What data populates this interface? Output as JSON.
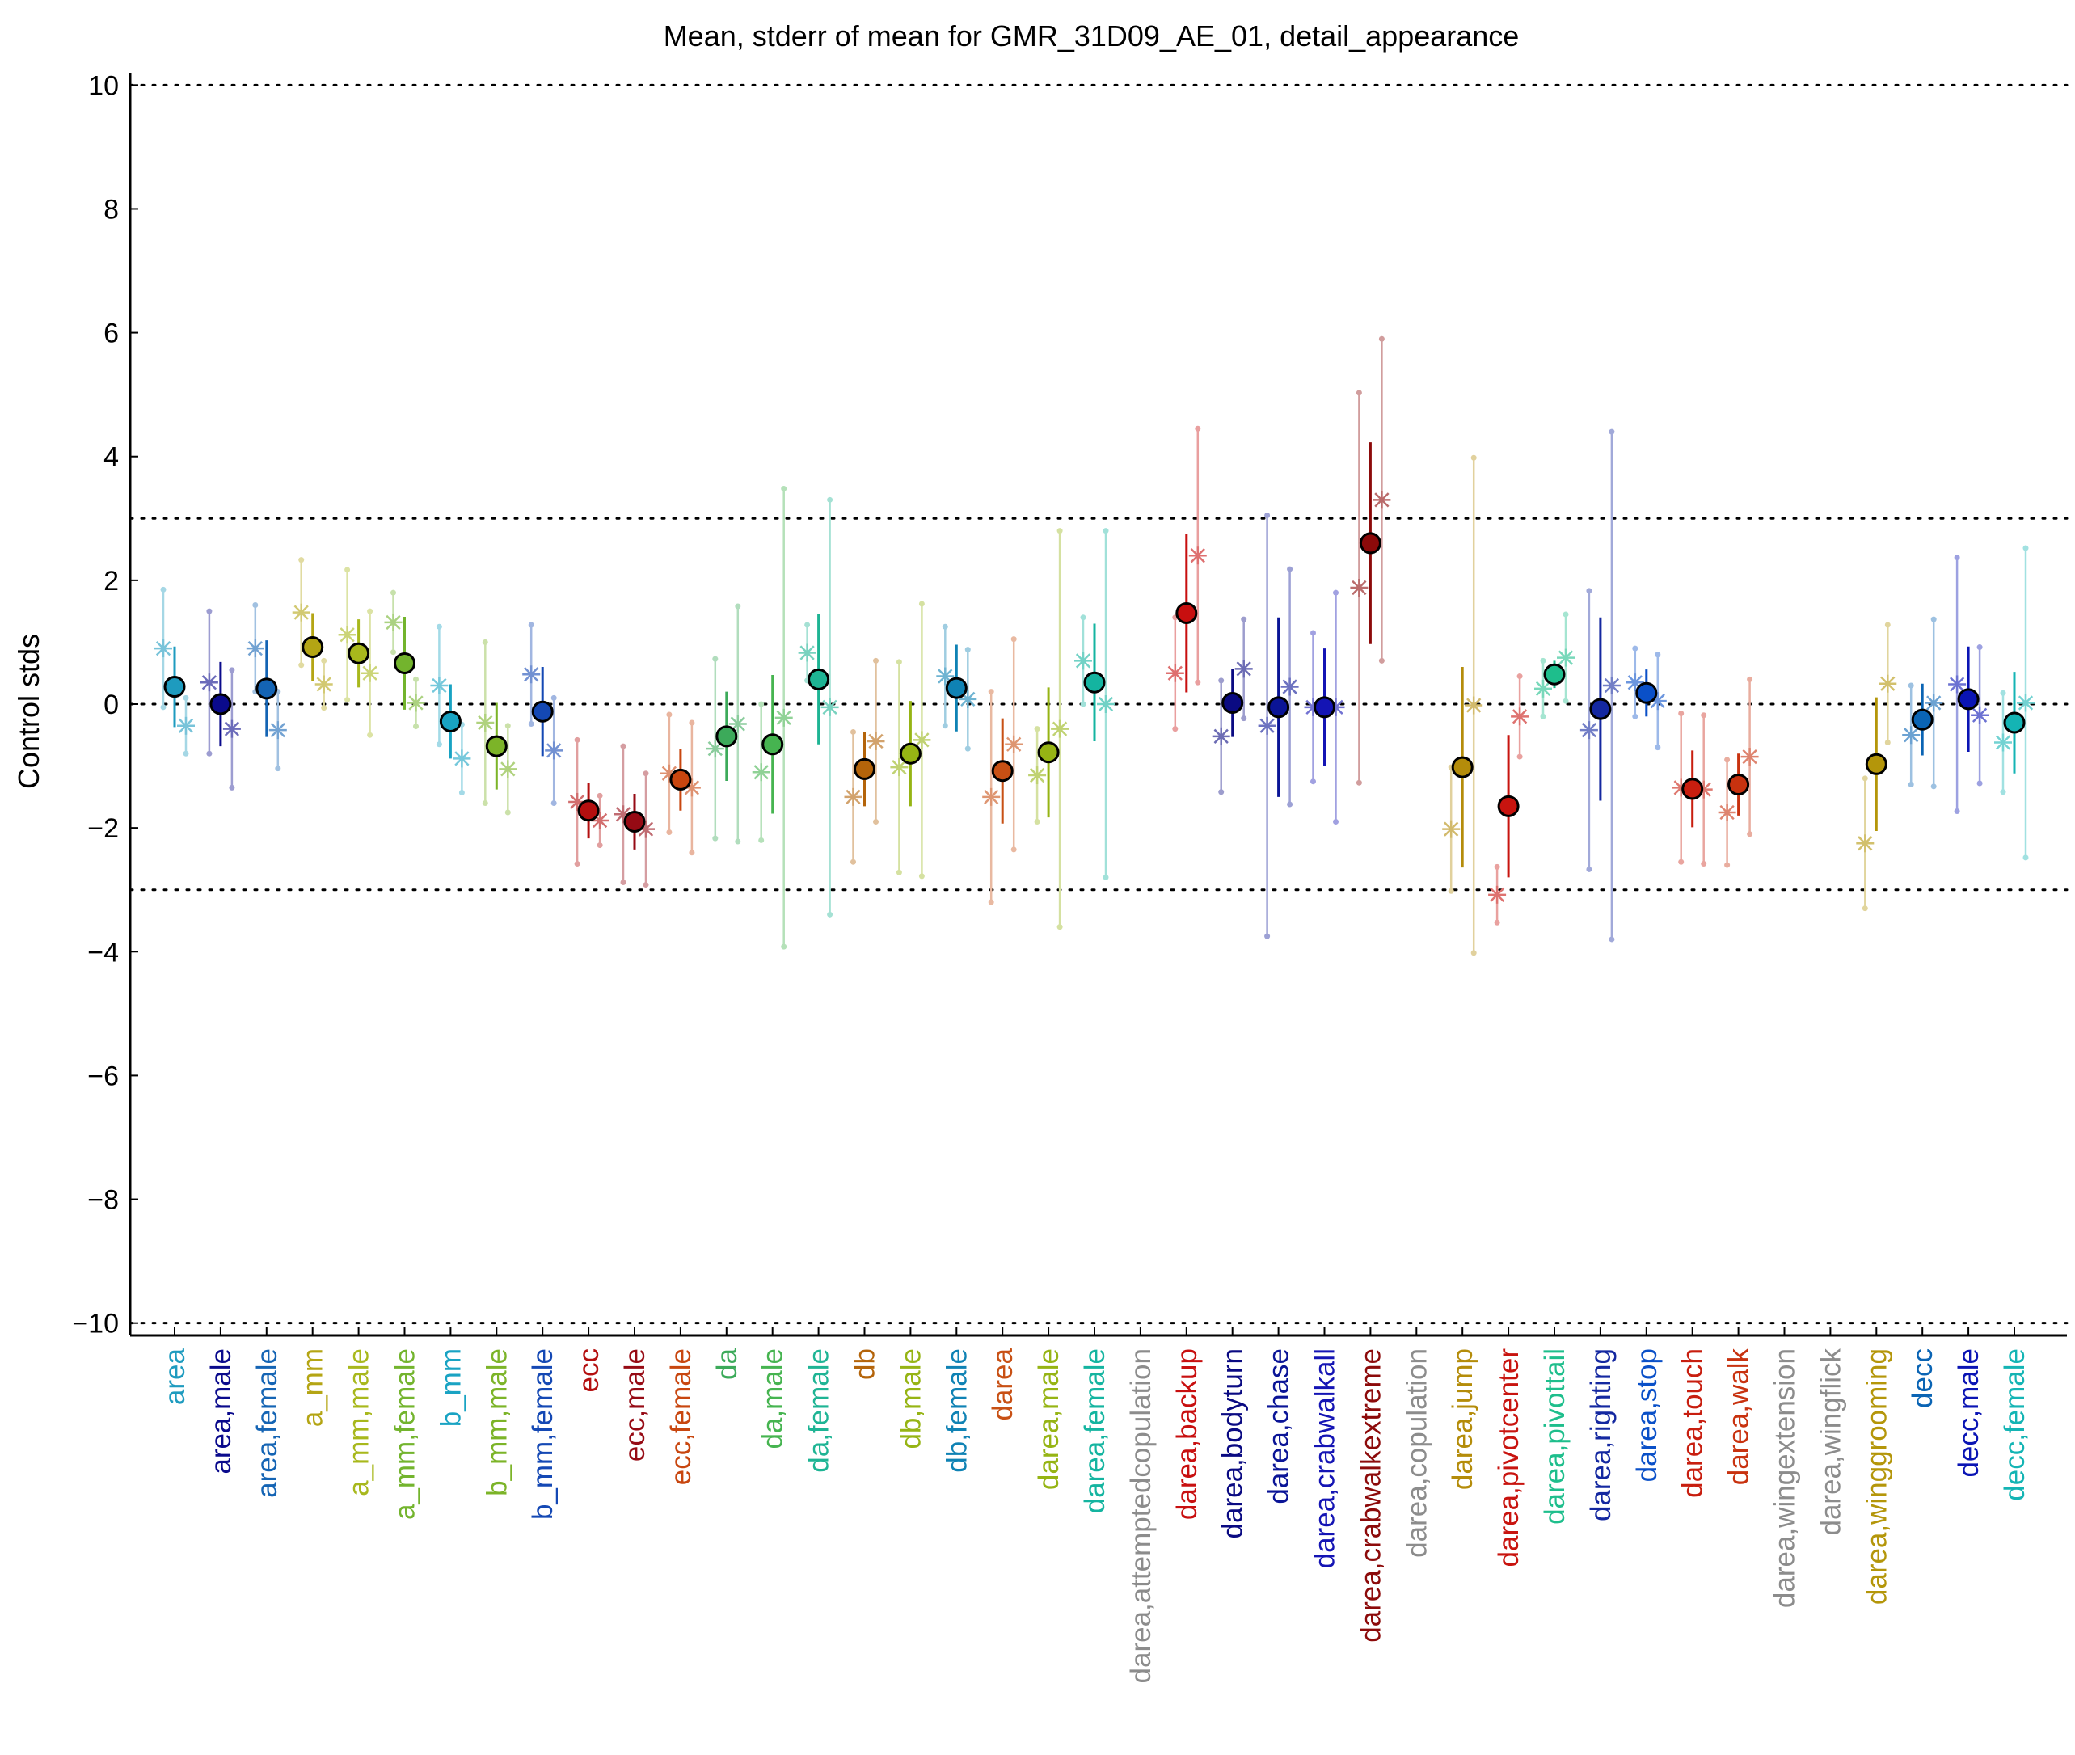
{
  "chart_data": {
    "type": "scatter",
    "title": "Mean, stderr of mean for GMR_31D09_AE_01, detail_appearance",
    "ylabel": "Control stds",
    "xlabel": "",
    "ylim": [
      -10.2,
      10.2
    ],
    "yticks": [
      10,
      8,
      6,
      4,
      2,
      0,
      -2,
      -4,
      -6,
      -8,
      -10
    ],
    "ytick_labels": [
      "10",
      "8",
      "6",
      "4",
      "2",
      "0",
      "−2",
      "−4",
      "−6",
      "−8",
      "−10"
    ],
    "reference_lines": [
      10,
      3,
      0,
      -3,
      -10
    ],
    "grid": false,
    "categories": [
      {
        "label": "area",
        "color": "#1e9bbf",
        "mean": 0.28,
        "se": 0.65,
        "lines": [
          {
            "v": 0.9,
            "se": 0.95
          },
          {
            "v": -0.35,
            "se": 0.45
          }
        ]
      },
      {
        "label": "area,male",
        "color": "#0a0a8c",
        "mean": 0.0,
        "se": 0.68,
        "lines": [
          {
            "v": 0.35,
            "se": 1.15
          },
          {
            "v": -0.4,
            "se": 0.95
          }
        ]
      },
      {
        "label": "area,female",
        "color": "#1464b4",
        "mean": 0.25,
        "se": 0.78,
        "lines": [
          {
            "v": 0.9,
            "se": 0.7
          },
          {
            "v": -0.42,
            "se": 0.62
          }
        ]
      },
      {
        "label": "a_mm",
        "color": "#b4a514",
        "mean": 0.92,
        "se": 0.55,
        "lines": [
          {
            "v": 1.48,
            "se": 0.85
          },
          {
            "v": 0.32,
            "se": 0.38
          }
        ]
      },
      {
        "label": "a_mm,male",
        "color": "#a8b81c",
        "mean": 0.82,
        "se": 0.55,
        "lines": [
          {
            "v": 1.12,
            "se": 1.05
          },
          {
            "v": 0.5,
            "se": 1.0
          }
        ]
      },
      {
        "label": "a_mm,female",
        "color": "#73b42d",
        "mean": 0.66,
        "se": 0.75,
        "lines": [
          {
            "v": 1.32,
            "se": 0.48
          },
          {
            "v": 0.02,
            "se": 0.38
          }
        ]
      },
      {
        "label": "b_mm",
        "color": "#19a3c3",
        "mean": -0.28,
        "se": 0.6,
        "lines": [
          {
            "v": 0.3,
            "se": 0.95
          },
          {
            "v": -0.88,
            "se": 0.55
          }
        ]
      },
      {
        "label": "b_mm,male",
        "color": "#7cb428",
        "mean": -0.68,
        "se": 0.7,
        "lines": [
          {
            "v": -0.3,
            "se": 1.3
          },
          {
            "v": -1.05,
            "se": 0.7
          }
        ]
      },
      {
        "label": "b_mm,female",
        "color": "#1448b4",
        "mean": -0.12,
        "se": 0.72,
        "lines": [
          {
            "v": 0.48,
            "se": 0.8
          },
          {
            "v": -0.75,
            "se": 0.85
          }
        ]
      },
      {
        "label": "ecc",
        "color": "#b40f0f",
        "mean": -1.72,
        "se": 0.45,
        "lines": [
          {
            "v": -1.58,
            "se": 1.0
          },
          {
            "v": -1.88,
            "se": 0.4
          }
        ]
      },
      {
        "label": "ecc,male",
        "color": "#960a14",
        "mean": -1.9,
        "se": 0.45,
        "lines": [
          {
            "v": -1.78,
            "se": 1.1
          },
          {
            "v": -2.02,
            "se": 0.9
          }
        ]
      },
      {
        "label": "ecc,female",
        "color": "#c8460f",
        "mean": -1.22,
        "se": 0.5,
        "lines": [
          {
            "v": -1.12,
            "se": 0.95
          },
          {
            "v": -1.35,
            "se": 1.05
          }
        ]
      },
      {
        "label": "da",
        "color": "#3caa5a",
        "mean": -0.52,
        "se": 0.72,
        "lines": [
          {
            "v": -0.72,
            "se": 1.45
          },
          {
            "v": -0.32,
            "se": 1.9
          }
        ]
      },
      {
        "label": "da,male",
        "color": "#46b450",
        "mean": -0.65,
        "se": 1.12,
        "lines": [
          {
            "v": -1.1,
            "se": 1.1
          },
          {
            "v": -0.22,
            "se": 3.7
          }
        ]
      },
      {
        "label": "da,female",
        "color": "#1eb494",
        "mean": 0.4,
        "se": 1.05,
        "lines": [
          {
            "v": 0.83,
            "se": 0.45
          },
          {
            "v": -0.05,
            "se": 3.35
          }
        ]
      },
      {
        "label": "db",
        "color": "#b4640a",
        "mean": -1.05,
        "se": 0.6,
        "lines": [
          {
            "v": -1.5,
            "se": 1.05
          },
          {
            "v": -0.6,
            "se": 1.3
          }
        ]
      },
      {
        "label": "db,male",
        "color": "#96b414",
        "mean": -0.8,
        "se": 0.85,
        "lines": [
          {
            "v": -1.02,
            "se": 1.7
          },
          {
            "v": -0.58,
            "se": 2.2
          }
        ]
      },
      {
        "label": "db,female",
        "color": "#0f82b4",
        "mean": 0.26,
        "se": 0.7,
        "lines": [
          {
            "v": 0.45,
            "se": 0.8
          },
          {
            "v": 0.08,
            "se": 0.8
          }
        ]
      },
      {
        "label": "darea",
        "color": "#c85014",
        "mean": -1.08,
        "se": 0.85,
        "lines": [
          {
            "v": -1.5,
            "se": 1.7
          },
          {
            "v": -0.65,
            "se": 1.7
          }
        ]
      },
      {
        "label": "darea,male",
        "color": "#96b414",
        "mean": -0.78,
        "se": 1.05,
        "lines": [
          {
            "v": -1.15,
            "se": 0.75
          },
          {
            "v": -0.4,
            "se": 3.2
          }
        ]
      },
      {
        "label": "darea,female",
        "color": "#14b4a0",
        "mean": 0.35,
        "se": 0.95,
        "lines": [
          {
            "v": 0.7,
            "se": 0.7
          },
          {
            "v": 0.0,
            "se": 2.8
          }
        ]
      },
      {
        "label": "darea,attemptedcopulation",
        "color": "#8c8c8c",
        "mean": null,
        "se": null,
        "lines": []
      },
      {
        "label": "darea,backup",
        "color": "#c80f0f",
        "mean": 1.47,
        "se": 1.28,
        "lines": [
          {
            "v": 0.5,
            "se": 0.9
          },
          {
            "v": 2.4,
            "se": 2.05
          }
        ]
      },
      {
        "label": "darea,bodyturn",
        "color": "#0a0a82",
        "mean": 0.02,
        "se": 0.55,
        "lines": [
          {
            "v": -0.52,
            "se": 0.9
          },
          {
            "v": 0.57,
            "se": 0.8
          }
        ]
      },
      {
        "label": "darea,chase",
        "color": "#0a1496",
        "mean": -0.05,
        "se": 1.45,
        "lines": [
          {
            "v": -0.35,
            "se": 3.4
          },
          {
            "v": 0.28,
            "se": 1.9
          }
        ]
      },
      {
        "label": "darea,crabwalkall",
        "color": "#1414b4",
        "mean": -0.05,
        "se": 0.95,
        "lines": [
          {
            "v": -0.05,
            "se": 1.2
          },
          {
            "v": -0.05,
            "se": 1.85
          }
        ]
      },
      {
        "label": "darea,crabwalkextreme",
        "color": "#8c0a0a",
        "mean": 2.6,
        "se": 1.63,
        "lines": [
          {
            "v": 1.88,
            "se": 3.15
          },
          {
            "v": 3.3,
            "se": 2.6
          }
        ]
      },
      {
        "label": "darea,copulation",
        "color": "#8c8c8c",
        "mean": null,
        "se": null,
        "lines": []
      },
      {
        "label": "darea,jump",
        "color": "#b48c0a",
        "mean": -1.02,
        "se": 1.62,
        "lines": [
          {
            "v": -2.02,
            "se": 1.0
          },
          {
            "v": -0.02,
            "se": 4.0
          }
        ]
      },
      {
        "label": "darea,pivotcenter",
        "color": "#c8140f",
        "mean": -1.65,
        "se": 1.15,
        "lines": [
          {
            "v": -3.08,
            "se": 0.45
          },
          {
            "v": -0.2,
            "se": 0.65
          }
        ]
      },
      {
        "label": "darea,pivottail",
        "color": "#1ebe8c",
        "mean": 0.48,
        "se": 0.22,
        "lines": [
          {
            "v": 0.25,
            "se": 0.45
          },
          {
            "v": 0.75,
            "se": 0.7
          }
        ]
      },
      {
        "label": "darea,righting",
        "color": "#1428a0",
        "mean": -0.08,
        "se": 1.48,
        "lines": [
          {
            "v": -0.42,
            "se": 2.25
          },
          {
            "v": 0.3,
            "se": 4.1
          }
        ]
      },
      {
        "label": "darea,stop",
        "color": "#0a50c8",
        "mean": 0.18,
        "se": 0.38,
        "lines": [
          {
            "v": 0.35,
            "se": 0.55
          },
          {
            "v": 0.05,
            "se": 0.75
          }
        ]
      },
      {
        "label": "darea,touch",
        "color": "#c81e0f",
        "mean": -1.37,
        "se": 0.62,
        "lines": [
          {
            "v": -1.35,
            "se": 1.2
          },
          {
            "v": -1.38,
            "se": 1.2
          }
        ]
      },
      {
        "label": "darea,walk",
        "color": "#c8320f",
        "mean": -1.3,
        "se": 0.5,
        "lines": [
          {
            "v": -1.75,
            "se": 0.85
          },
          {
            "v": -0.85,
            "se": 1.25
          }
        ]
      },
      {
        "label": "darea,wingextension",
        "color": "#8c8c8c",
        "mean": null,
        "se": null,
        "lines": []
      },
      {
        "label": "darea,wingflick",
        "color": "#8c8c8c",
        "mean": null,
        "se": null,
        "lines": []
      },
      {
        "label": "darea,winggrooming",
        "color": "#b4960a",
        "mean": -0.97,
        "se": 1.08,
        "lines": [
          {
            "v": -2.25,
            "se": 1.05
          },
          {
            "v": 0.33,
            "se": 0.95
          }
        ]
      },
      {
        "label": "decc",
        "color": "#0a64b4",
        "mean": -0.25,
        "se": 0.58,
        "lines": [
          {
            "v": -0.5,
            "se": 0.8
          },
          {
            "v": 0.02,
            "se": 1.35
          }
        ]
      },
      {
        "label": "decc,male",
        "color": "#0a14b4",
        "mean": 0.08,
        "se": 0.85,
        "lines": [
          {
            "v": 0.32,
            "se": 2.05
          },
          {
            "v": -0.18,
            "se": 1.1
          }
        ]
      },
      {
        "label": "decc,female",
        "color": "#14b4b4",
        "mean": -0.3,
        "se": 0.82,
        "lines": [
          {
            "v": -0.62,
            "se": 0.8
          },
          {
            "v": 0.02,
            "se": 2.5
          }
        ]
      }
    ]
  }
}
